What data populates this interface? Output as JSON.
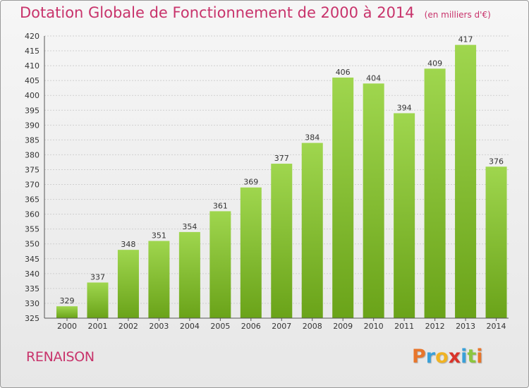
{
  "chart_data": {
    "type": "bar",
    "title": "Dotation Globale de Fonctionnement de 2000 à 2014",
    "subtitle": "(en milliers d'€)",
    "categories": [
      "2000",
      "2001",
      "2002",
      "2003",
      "2004",
      "2005",
      "2006",
      "2007",
      "2008",
      "2009",
      "2010",
      "2011",
      "2012",
      "2013",
      "2014"
    ],
    "values": [
      329,
      337,
      348,
      351,
      354,
      361,
      369,
      377,
      384,
      406,
      404,
      394,
      409,
      417,
      376
    ],
    "ylim": [
      325,
      420
    ],
    "yticks": [
      325,
      330,
      335,
      340,
      345,
      350,
      355,
      360,
      365,
      370,
      375,
      380,
      385,
      390,
      395,
      400,
      405,
      410,
      415,
      420
    ],
    "grid": true,
    "bar_color": "#8cc63f"
  },
  "footer": {
    "commune": "RENAISON"
  },
  "logo": {
    "letters": [
      {
        "ch": "P",
        "color": "#e8762b"
      },
      {
        "ch": "r",
        "color": "#3aa0d8"
      },
      {
        "ch": "o",
        "color": "#f0b323"
      },
      {
        "ch": "x",
        "color": "#d9332a"
      },
      {
        "ch": "i",
        "color": "#3aa0d8"
      },
      {
        "ch": "t",
        "color": "#8cc63f"
      },
      {
        "ch": "i",
        "color": "#e8762b"
      }
    ]
  }
}
